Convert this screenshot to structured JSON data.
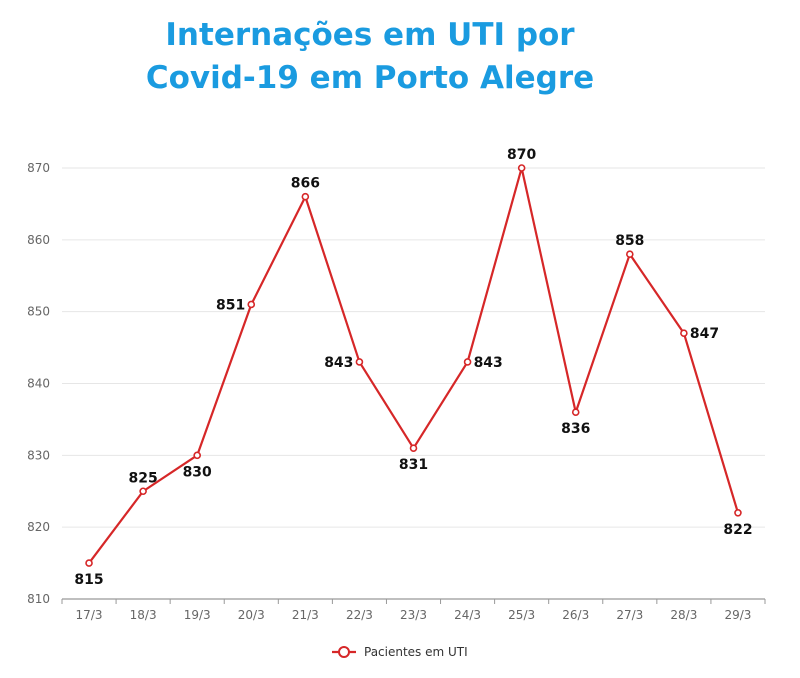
{
  "chart_data": {
    "type": "line",
    "title_lines": [
      "Internações em UTI por",
      "Covid-19 em Porto Alegre"
    ],
    "categories": [
      "17/3",
      "18/3",
      "19/3",
      "20/3",
      "21/3",
      "22/3",
      "23/3",
      "24/3",
      "25/3",
      "26/3",
      "27/3",
      "28/3",
      "29/3"
    ],
    "series": [
      {
        "name": "Pacientes em UTI",
        "values": [
          815,
          825,
          830,
          851,
          866,
          843,
          831,
          843,
          870,
          836,
          858,
          847,
          822
        ],
        "color": "#d62728"
      }
    ],
    "label_positions": [
      "below",
      "above",
      "below",
      "left",
      "above",
      "left",
      "below",
      "right",
      "above",
      "below",
      "above",
      "right",
      "below"
    ],
    "yticks": [
      810,
      820,
      830,
      840,
      850,
      860,
      870
    ],
    "ylim": [
      810,
      870
    ],
    "grid": true,
    "legend_position": "bottom-center",
    "xlabel": "",
    "ylabel": ""
  }
}
